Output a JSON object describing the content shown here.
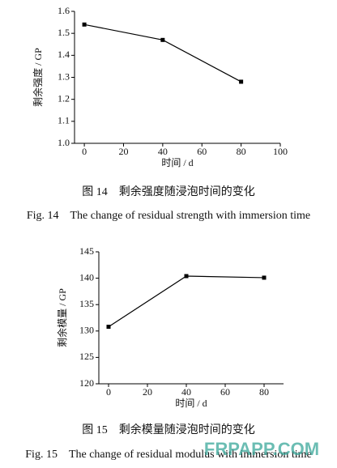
{
  "chart_data": [
    {
      "type": "line",
      "x_label": "时间 / d",
      "y_label": "剩余强度 / GP",
      "x": [
        0,
        40,
        80
      ],
      "values": [
        1.54,
        1.47,
        1.28
      ],
      "color": "#000000",
      "xlim": [
        -5,
        100
      ],
      "xticks": [
        0,
        20,
        40,
        60,
        80,
        100
      ],
      "ylim": [
        1.0,
        1.6
      ],
      "yticks": [
        {
          "value": 1.0,
          "label": "1.0"
        },
        1.1,
        1.2,
        1.3,
        1.4,
        1.5,
        1.6
      ],
      "caption_zh": "图 14　剩余强度随浸泡时间的变化",
      "caption_en": "Fig. 14　The change of residual strength with immersion time"
    },
    {
      "type": "line",
      "x_label": "时间 / d",
      "y_label": "剩余模量 / GP",
      "x": [
        0,
        40,
        80
      ],
      "values": [
        130.8,
        140.4,
        140.1
      ],
      "color": "#000000",
      "xlim": [
        -5,
        90
      ],
      "xticks": [
        0,
        20,
        40,
        60,
        80
      ],
      "ylim": [
        120,
        145
      ],
      "yticks": [
        120,
        125,
        130,
        135,
        140,
        145
      ],
      "caption_zh": "图 15　剩余模量随浸泡时间的变化",
      "caption_en": "Fig. 15　The change of residual modulus with immersion time"
    }
  ],
  "watermark": "FRPAPP.COM"
}
